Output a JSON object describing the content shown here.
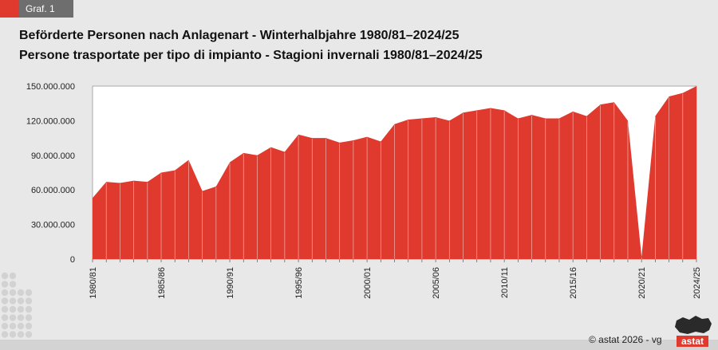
{
  "badge": {
    "label": "Graf. 1"
  },
  "title_de": "Beförderte Personen nach Anlagenart - Winterhalbjahre 1980/81–2024/25",
  "title_it": "Persone trasportate per tipo di impianto - Stagioni invernali 1980/81–2024/25",
  "copyright": "©  astat 2026 - vg",
  "logo_text": "astat",
  "colors": {
    "fill": "#e03a2f",
    "badge_red": "#e03a2f",
    "badge_dark": "#6e6e6e",
    "background": "#e8e8e8"
  },
  "chart_data": {
    "type": "area",
    "x": [
      "1980/81",
      "1981/82",
      "1982/83",
      "1983/84",
      "1984/85",
      "1985/86",
      "1986/87",
      "1987/88",
      "1988/89",
      "1989/90",
      "1990/91",
      "1991/92",
      "1992/93",
      "1993/94",
      "1994/95",
      "1995/96",
      "1996/97",
      "1997/98",
      "1998/99",
      "1999/00",
      "2000/01",
      "2001/02",
      "2002/03",
      "2003/04",
      "2004/05",
      "2005/06",
      "2006/07",
      "2007/08",
      "2008/09",
      "2009/10",
      "2010/11",
      "2011/12",
      "2012/13",
      "2013/14",
      "2014/15",
      "2015/16",
      "2016/17",
      "2017/18",
      "2018/19",
      "2019/20",
      "2020/21",
      "2021/22",
      "2022/23",
      "2023/24",
      "2024/25"
    ],
    "values": [
      53000000,
      67000000,
      66000000,
      68000000,
      67000000,
      75000000,
      77000000,
      86000000,
      59000000,
      63000000,
      84000000,
      92000000,
      90000000,
      97000000,
      93000000,
      108000000,
      105000000,
      105000000,
      101000000,
      103000000,
      106000000,
      102000000,
      117000000,
      121000000,
      122000000,
      123000000,
      120000000,
      127000000,
      129000000,
      131000000,
      129000000,
      122000000,
      125000000,
      122000000,
      122000000,
      128000000,
      124000000,
      134000000,
      136000000,
      120000000,
      2000000,
      124000000,
      141000000,
      144000000,
      150000000
    ],
    "x_tick_labels": [
      "1980/81",
      "1985/86",
      "1990/91",
      "1995/96",
      "2000/01",
      "2005/06",
      "2010/11",
      "2015/16",
      "2020/21",
      "2024/25"
    ],
    "y_ticks": [
      0,
      30000000,
      60000000,
      90000000,
      120000000,
      150000000
    ],
    "y_tick_labels": [
      "0",
      "30.000.000",
      "60.000.000",
      "90.000.000",
      "120.000.000",
      "150.000.000"
    ],
    "ylim": [
      0,
      150000000
    ],
    "grid": false,
    "legend": "none"
  }
}
